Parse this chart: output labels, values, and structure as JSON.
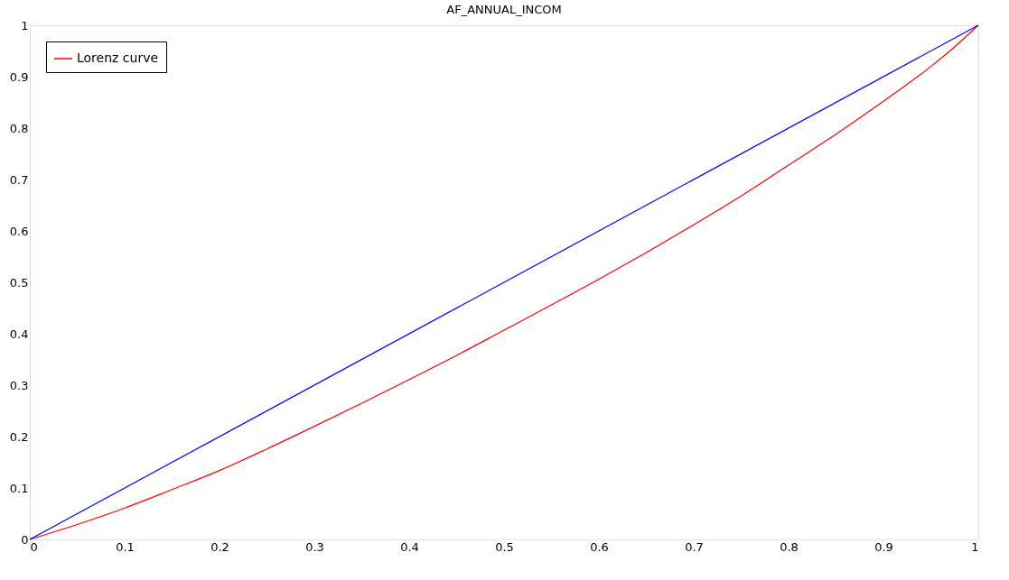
{
  "chart_data": {
    "type": "line",
    "title": "AF_ANNUAL_INCOM",
    "x": [
      0,
      0.05,
      0.1,
      0.15,
      0.2,
      0.25,
      0.3,
      0.35,
      0.4,
      0.45,
      0.5,
      0.55,
      0.6,
      0.65,
      0.7,
      0.75,
      0.8,
      0.85,
      0.9,
      0.95,
      0.975,
      1
    ],
    "series": [
      {
        "name": "Lorenz curve",
        "color": "#ff0000",
        "values": [
          0,
          0.029,
          0.061,
          0.097,
          0.134,
          0.176,
          0.22,
          0.265,
          0.311,
          0.358,
          0.407,
          0.456,
          0.506,
          0.558,
          0.612,
          0.668,
          0.728,
          0.788,
          0.852,
          0.92,
          0.958,
          1
        ]
      },
      {
        "color": "#0000ff",
        "x": [
          0,
          1
        ],
        "values": [
          0,
          1
        ]
      }
    ],
    "xlim": [
      0,
      1
    ],
    "ylim": [
      0,
      1
    ],
    "xticks": [
      0,
      0.1,
      0.2,
      0.3,
      0.4,
      0.5,
      0.6,
      0.7,
      0.8,
      0.9,
      1
    ],
    "yticks": [
      0,
      0.1,
      0.2,
      0.3,
      0.4,
      0.5,
      0.6,
      0.7,
      0.8,
      0.9,
      1
    ],
    "grid": false,
    "legend": "top left",
    "marker": "none",
    "line_style": "solid"
  }
}
